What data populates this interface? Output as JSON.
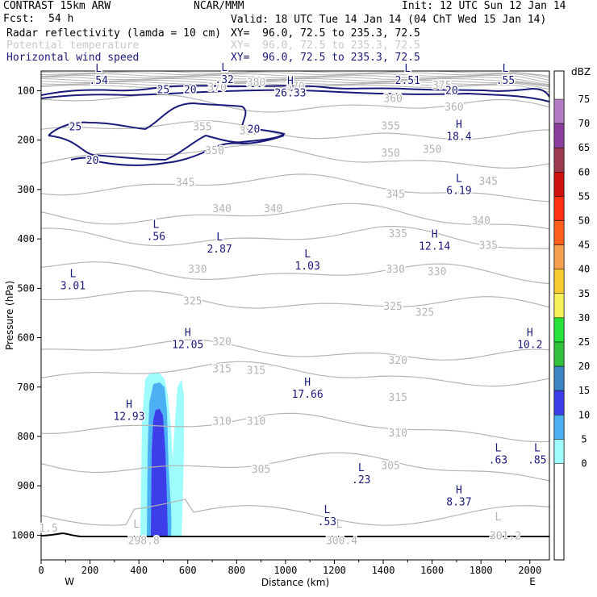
{
  "header": {
    "model": "CONTRAST 15km ARW",
    "fcst_label": "Fcst:",
    "fcst_value": "54 h",
    "center": "NCAR/MMM",
    "init": "Init: 12 UTC Sun 12 Jan 14",
    "valid": "Valid: 18 UTC Tue 14 Jan 14 (04 ChT Wed 15 Jan 14)",
    "fields": [
      {
        "name": "Radar reflectivity (lamda = 10 cm)",
        "xy": "XY=  96.0, 72.5 to 235.3, 72.5",
        "color": "#000000"
      },
      {
        "name": "Potential temperature",
        "xy": "XY=  96.0, 72.5 to 235.3, 72.5",
        "color": "#c8c8c8"
      },
      {
        "name": "Horizontal wind speed",
        "xy": "XY=  96.0, 72.5 to 235.3, 72.5",
        "color": "#1a1a7a"
      }
    ]
  },
  "chart_data": {
    "type": "cross-section",
    "xlabel": "Distance (km)",
    "ylabel": "Pressure (hPa)",
    "xlim": [
      0,
      2080
    ],
    "ylim": [
      1050,
      60
    ],
    "x_ticks": [
      0,
      200,
      400,
      600,
      800,
      1000,
      1200,
      1400,
      1600,
      1800,
      2000
    ],
    "y_ticks": [
      100,
      200,
      300,
      400,
      500,
      600,
      700,
      800,
      900,
      1000
    ],
    "x_end_labels": {
      "left": "W",
      "right": "E"
    },
    "colorbar": {
      "title": "dBZ",
      "levels": [
        0,
        5,
        10,
        15,
        20,
        25,
        30,
        35,
        40,
        45,
        50,
        55,
        60,
        65,
        70,
        75
      ],
      "colors": [
        "#ffffff",
        "#9ffcfc",
        "#4cb0f5",
        "#3d3dea",
        "#3a86c3",
        "#31c13a",
        "#27e33a",
        "#f7f25a",
        "#f6cc2f",
        "#f59f4f",
        "#ff5e1b",
        "#ff3010",
        "#d00f0f",
        "#9c3a50",
        "#8b3e9c",
        "#b47bc4"
      ]
    },
    "theta_isentropes": [
      {
        "value": 305,
        "p": 855
      },
      {
        "value": 310,
        "p": 775
      },
      {
        "value": 315,
        "p": 670
      },
      {
        "value": 320,
        "p": 625
      },
      {
        "value": 325,
        "p": 525
      },
      {
        "value": 330,
        "p": 465
      },
      {
        "value": 335,
        "p": 395
      },
      {
        "value": 340,
        "p": 350
      },
      {
        "value": 345,
        "p": 290
      },
      {
        "value": 350,
        "p": 230
      },
      {
        "value": 355,
        "p": 180
      },
      {
        "value": 360,
        "p": 125
      }
    ],
    "theta_labels": [
      {
        "text": "305",
        "x": 900,
        "p": 865
      },
      {
        "text": "305",
        "x": 1430,
        "p": 858
      },
      {
        "text": "310",
        "x": 740,
        "p": 768
      },
      {
        "text": "310",
        "x": 880,
        "p": 768
      },
      {
        "text": "310",
        "x": 1460,
        "p": 792
      },
      {
        "text": "315",
        "x": 740,
        "p": 662
      },
      {
        "text": "315",
        "x": 880,
        "p": 665
      },
      {
        "text": "315",
        "x": 1460,
        "p": 720
      },
      {
        "text": "320",
        "x": 740,
        "p": 607
      },
      {
        "text": "320",
        "x": 1460,
        "p": 645
      },
      {
        "text": "325",
        "x": 620,
        "p": 525
      },
      {
        "text": "325",
        "x": 1440,
        "p": 535
      },
      {
        "text": "325",
        "x": 1570,
        "p": 548
      },
      {
        "text": "330",
        "x": 640,
        "p": 460
      },
      {
        "text": "330",
        "x": 1450,
        "p": 460
      },
      {
        "text": "330",
        "x": 1620,
        "p": 465
      },
      {
        "text": "335",
        "x": 1460,
        "p": 388
      },
      {
        "text": "335",
        "x": 1830,
        "p": 412
      },
      {
        "text": "340",
        "x": 740,
        "p": 338
      },
      {
        "text": "340",
        "x": 950,
        "p": 338
      },
      {
        "text": "340",
        "x": 1800,
        "p": 362
      },
      {
        "text": "345",
        "x": 590,
        "p": 285
      },
      {
        "text": "345",
        "x": 1450,
        "p": 308
      },
      {
        "text": "345",
        "x": 1830,
        "p": 282
      },
      {
        "text": "350",
        "x": 710,
        "p": 220
      },
      {
        "text": "350",
        "x": 1430,
        "p": 225
      },
      {
        "text": "350",
        "x": 1600,
        "p": 218
      },
      {
        "text": "355",
        "x": 660,
        "p": 172
      },
      {
        "text": "355",
        "x": 850,
        "p": 180
      },
      {
        "text": "355",
        "x": 1430,
        "p": 170
      },
      {
        "text": "360",
        "x": 1440,
        "p": 115
      },
      {
        "text": "360",
        "x": 1690,
        "p": 132
      },
      {
        "text": "370",
        "x": 720,
        "p": 92
      },
      {
        "text": "370",
        "x": 1040,
        "p": 90
      },
      {
        "text": "375",
        "x": 1640,
        "p": 88
      },
      {
        "text": "380",
        "x": 880,
        "p": 82
      },
      {
        "text": "1.5",
        "x": 30,
        "p": 985
      },
      {
        "text": "298.8",
        "x": 420,
        "p": 1010
      },
      {
        "text": "300.4",
        "x": 1230,
        "p": 1010
      },
      {
        "text": "301.2",
        "x": 1900,
        "p": 1000
      }
    ],
    "theta_extrema": [
      {
        "type": "L",
        "value": "298.8",
        "x": 390,
        "p": 985
      },
      {
        "type": "L",
        "value": "300.4",
        "x": 1220,
        "p": 985
      },
      {
        "type": "L",
        "value": "301.2",
        "x": 1870,
        "p": 970
      }
    ],
    "wind_labels": [
      {
        "text": "25",
        "x": 500,
        "p": 97
      },
      {
        "text": "20",
        "x": 610,
        "p": 97
      },
      {
        "text": "20",
        "x": 1680,
        "p": 98
      },
      {
        "text": "25",
        "x": 140,
        "p": 172
      },
      {
        "text": "20",
        "x": 870,
        "p": 177
      },
      {
        "text": "20",
        "x": 210,
        "p": 240
      }
    ],
    "wind_extrema": [
      {
        "type": "L",
        "value": ".54",
        "x": 235,
        "p": 62
      },
      {
        "type": "L",
        "value": ".32",
        "x": 750,
        "p": 60
      },
      {
        "type": "H",
        "value": "26.33",
        "x": 1020,
        "p": 87
      },
      {
        "type": "L",
        "value": "2.51",
        "x": 1500,
        "p": 62
      },
      {
        "type": "L",
        "value": ".55",
        "x": 1900,
        "p": 62
      },
      {
        "type": "H",
        "value": "18.4",
        "x": 1710,
        "p": 175
      },
      {
        "type": "L",
        "value": "6.19",
        "x": 1710,
        "p": 285
      },
      {
        "type": "L",
        "value": ".56",
        "x": 470,
        "p": 378
      },
      {
        "type": "L",
        "value": "2.87",
        "x": 730,
        "p": 403
      },
      {
        "type": "H",
        "value": "12.14",
        "x": 1610,
        "p": 397
      },
      {
        "type": "L",
        "value": "1.03",
        "x": 1090,
        "p": 437
      },
      {
        "type": "L",
        "value": "3.01",
        "x": 130,
        "p": 477
      },
      {
        "type": "H",
        "value": "12.05",
        "x": 600,
        "p": 597
      },
      {
        "type": "H",
        "value": "10.2",
        "x": 2000,
        "p": 597
      },
      {
        "type": "H",
        "value": "17.66",
        "x": 1090,
        "p": 697
      },
      {
        "type": "H",
        "value": "12.93",
        "x": 360,
        "p": 742
      },
      {
        "type": "L",
        "value": ".63",
        "x": 1870,
        "p": 830
      },
      {
        "type": "L",
        "value": ".85",
        "x": 2030,
        "p": 830
      },
      {
        "type": "L",
        "value": ".23",
        "x": 1310,
        "p": 870
      },
      {
        "type": "H",
        "value": "8.37",
        "x": 1710,
        "p": 915
      },
      {
        "type": "L",
        "value": ".53",
        "x": 1170,
        "p": 955
      }
    ]
  }
}
